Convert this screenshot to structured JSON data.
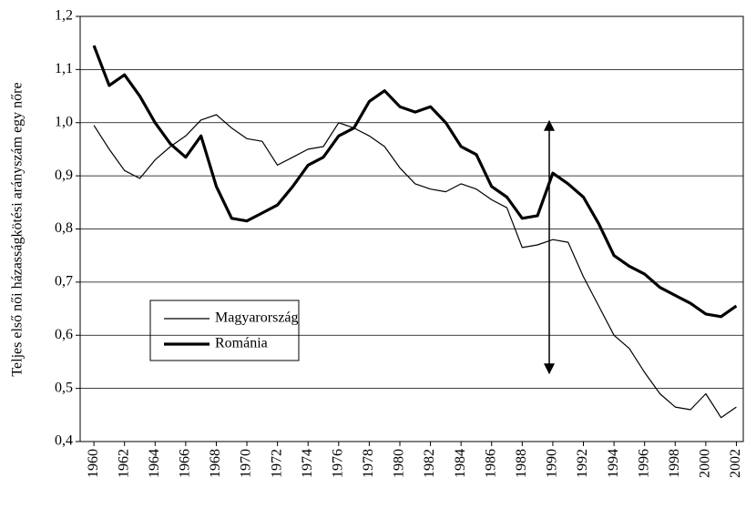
{
  "chart_data": {
    "type": "line",
    "y_label": "Teljes első női házasságkötési arányszám egy nőre",
    "x": [
      1960,
      1961,
      1962,
      1963,
      1964,
      1965,
      1966,
      1967,
      1968,
      1969,
      1970,
      1971,
      1972,
      1973,
      1974,
      1975,
      1976,
      1977,
      1978,
      1979,
      1980,
      1981,
      1982,
      1983,
      1984,
      1985,
      1986,
      1987,
      1988,
      1989,
      1990,
      1991,
      1992,
      1993,
      1994,
      1995,
      1996,
      1997,
      1998,
      1999,
      2000,
      2001,
      2002
    ],
    "series": [
      {
        "name": "Magyarország",
        "color": "#000000",
        "width": 1.2,
        "values": [
          0.995,
          0.95,
          0.91,
          0.895,
          0.93,
          0.955,
          0.975,
          1.005,
          1.015,
          0.99,
          0.97,
          0.965,
          0.92,
          0.935,
          0.95,
          0.955,
          1.0,
          0.99,
          0.975,
          0.955,
          0.915,
          0.885,
          0.875,
          0.87,
          0.885,
          0.875,
          0.855,
          0.84,
          0.765,
          0.77,
          0.78,
          0.775,
          0.71,
          0.655,
          0.6,
          0.575,
          0.53,
          0.49,
          0.465,
          0.46,
          0.49,
          0.445,
          0.465
        ]
      },
      {
        "name": "Románia",
        "color": "#000000",
        "width": 3.2,
        "values": [
          1.145,
          1.07,
          1.09,
          1.05,
          1.0,
          0.96,
          0.935,
          0.975,
          0.88,
          0.82,
          0.815,
          0.83,
          0.845,
          0.88,
          0.92,
          0.935,
          0.975,
          0.99,
          1.04,
          1.06,
          1.03,
          1.02,
          1.03,
          1.0,
          0.955,
          0.94,
          0.88,
          0.86,
          0.82,
          0.825,
          0.905,
          0.885,
          0.86,
          0.81,
          0.75,
          0.73,
          0.715,
          0.69,
          0.675,
          0.66,
          0.64,
          0.635,
          0.655
        ]
      }
    ],
    "xlim": [
      1959.1,
      2002.45
    ],
    "xticks": [
      1960,
      1962,
      1964,
      1966,
      1968,
      1970,
      1972,
      1974,
      1976,
      1978,
      1980,
      1982,
      1984,
      1986,
      1988,
      1990,
      1992,
      1994,
      1996,
      1998,
      2000,
      2002
    ],
    "ylim": [
      0.4,
      1.2
    ],
    "yticks": [
      {
        "value": 0.4,
        "label": "0,4"
      },
      {
        "value": 0.5,
        "label": "0,5"
      },
      {
        "value": 0.6,
        "label": "0,6"
      },
      {
        "value": 0.7,
        "label": "0,7"
      },
      {
        "value": 0.8,
        "label": "0,8"
      },
      {
        "value": 0.9,
        "label": "0,9"
      },
      {
        "value": 1.0,
        "label": "1,0"
      },
      {
        "value": 1.1,
        "label": "1,1"
      },
      {
        "value": 1.2,
        "label": "1,2"
      }
    ],
    "grid": true
  }
}
